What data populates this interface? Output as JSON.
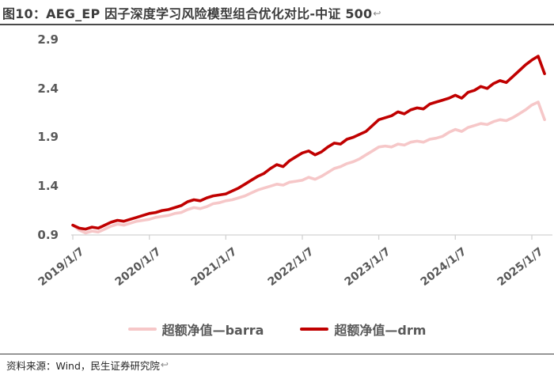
{
  "title": {
    "text": "图10：AEG_EP 因子深度学习风险模型组合优化对比-中证 500",
    "return_mark": "↩"
  },
  "source": {
    "text": "资料来源：Wind，民生证券研究院",
    "return_mark": "↩"
  },
  "colors": {
    "barra_pink": "#F6C7C8",
    "drm_red": "#C00000",
    "axis_gray": "#D2D2D2",
    "label_gray": "#595959",
    "title_dark": "#3D3D3D"
  },
  "chart_data": {
    "type": "line",
    "title": "",
    "xlabel": "",
    "ylabel": "",
    "ylim": [
      0.9,
      2.9
    ],
    "grid": false,
    "legend_position": "bottom-center",
    "y_tick_labels": [
      "2.9",
      "2.4",
      "1.9",
      "1.4",
      "0.9"
    ],
    "x_tick_labels": [
      "2019/1/7",
      "2020/1/7",
      "2021/1/7",
      "2022/1/7",
      "2023/1/7",
      "2024/1/7",
      "2025/1/7"
    ],
    "x": [
      "2019-01",
      "2019-02",
      "2019-03",
      "2019-04",
      "2019-05",
      "2019-06",
      "2019-07",
      "2019-08",
      "2019-09",
      "2019-10",
      "2019-11",
      "2019-12",
      "2020-01",
      "2020-02",
      "2020-03",
      "2020-04",
      "2020-05",
      "2020-06",
      "2020-07",
      "2020-08",
      "2020-09",
      "2020-10",
      "2020-11",
      "2020-12",
      "2021-01",
      "2021-02",
      "2021-03",
      "2021-04",
      "2021-05",
      "2021-06",
      "2021-07",
      "2021-08",
      "2021-09",
      "2021-10",
      "2021-11",
      "2021-12",
      "2022-01",
      "2022-02",
      "2022-03",
      "2022-04",
      "2022-05",
      "2022-06",
      "2022-07",
      "2022-08",
      "2022-09",
      "2022-10",
      "2022-11",
      "2022-12",
      "2023-01",
      "2023-02",
      "2023-03",
      "2023-04",
      "2023-05",
      "2023-06",
      "2023-07",
      "2023-08",
      "2023-09",
      "2023-10",
      "2023-11",
      "2023-12",
      "2024-01",
      "2024-02",
      "2024-03",
      "2024-04",
      "2024-05",
      "2024-06",
      "2024-07",
      "2024-08",
      "2024-09",
      "2024-10",
      "2024-11",
      "2024-12",
      "2025-01",
      "2025-02",
      "2025-03"
    ],
    "series": [
      {
        "name": "超额净值—barra",
        "color": "#F6C7C8",
        "values": [
          1.0,
          0.95,
          0.92,
          0.94,
          0.93,
          0.96,
          0.99,
          1.01,
          1.0,
          1.02,
          1.04,
          1.05,
          1.06,
          1.08,
          1.09,
          1.1,
          1.12,
          1.13,
          1.16,
          1.18,
          1.17,
          1.19,
          1.22,
          1.23,
          1.25,
          1.26,
          1.28,
          1.3,
          1.33,
          1.36,
          1.38,
          1.4,
          1.42,
          1.41,
          1.44,
          1.45,
          1.46,
          1.49,
          1.47,
          1.5,
          1.54,
          1.58,
          1.6,
          1.63,
          1.65,
          1.68,
          1.72,
          1.76,
          1.8,
          1.81,
          1.8,
          1.83,
          1.82,
          1.85,
          1.86,
          1.85,
          1.88,
          1.89,
          1.91,
          1.95,
          1.98,
          1.96,
          2.0,
          2.02,
          2.04,
          2.03,
          2.06,
          2.08,
          2.07,
          2.1,
          2.14,
          2.18,
          2.23,
          2.26,
          2.08
        ]
      },
      {
        "name": "超额净值—drm",
        "color": "#C00000",
        "values": [
          1.0,
          0.97,
          0.96,
          0.98,
          0.97,
          1.0,
          1.03,
          1.05,
          1.04,
          1.06,
          1.08,
          1.1,
          1.12,
          1.13,
          1.15,
          1.16,
          1.18,
          1.2,
          1.24,
          1.26,
          1.25,
          1.28,
          1.3,
          1.31,
          1.32,
          1.35,
          1.38,
          1.42,
          1.46,
          1.5,
          1.53,
          1.58,
          1.62,
          1.6,
          1.66,
          1.7,
          1.74,
          1.76,
          1.72,
          1.75,
          1.8,
          1.84,
          1.83,
          1.88,
          1.9,
          1.93,
          1.96,
          2.02,
          2.08,
          2.1,
          2.12,
          2.16,
          2.14,
          2.18,
          2.2,
          2.19,
          2.24,
          2.26,
          2.28,
          2.3,
          2.33,
          2.3,
          2.36,
          2.38,
          2.42,
          2.4,
          2.45,
          2.48,
          2.46,
          2.52,
          2.58,
          2.64,
          2.69,
          2.73,
          2.55
        ]
      }
    ]
  }
}
